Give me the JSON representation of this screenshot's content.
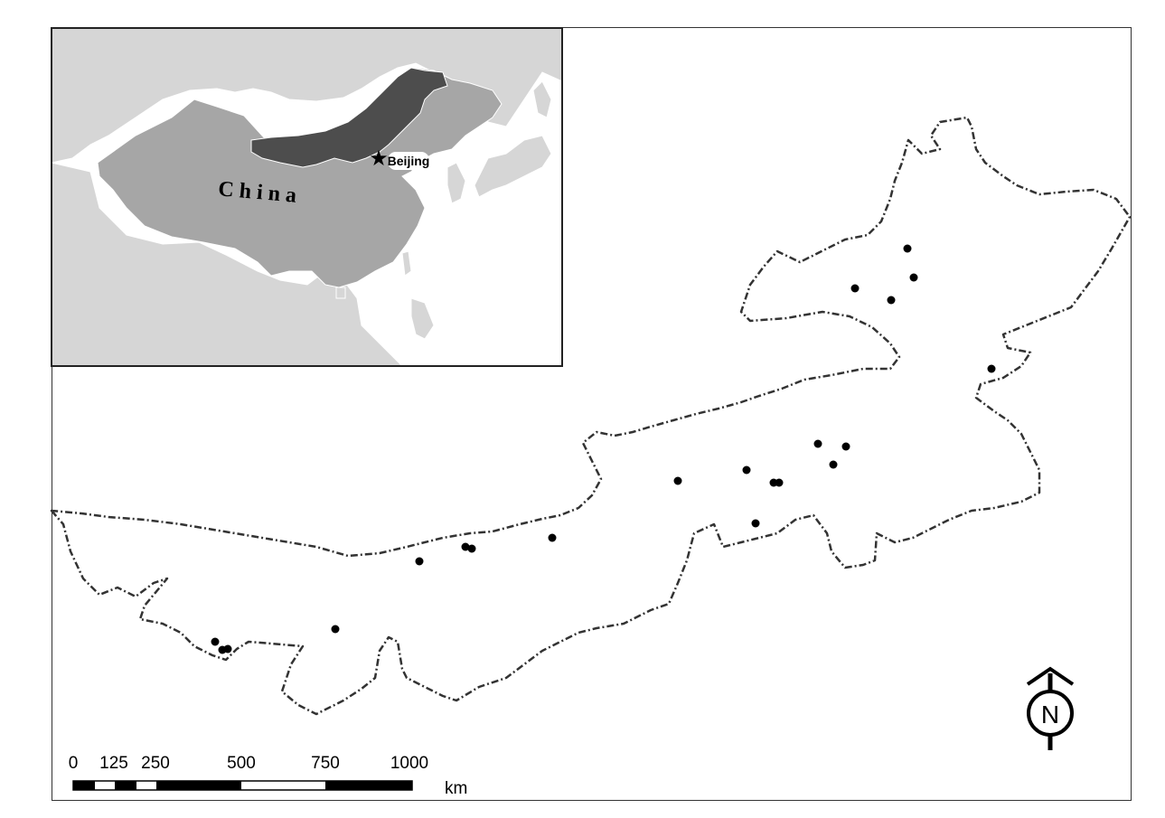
{
  "inset": {
    "country_label": "C h i n a",
    "capital_label": "Beijing",
    "capital_symbol": "★"
  },
  "north_arrow": {
    "label": "N"
  },
  "scale_bar": {
    "ticks": [
      "0",
      "125",
      "250",
      "500",
      "750",
      "1000"
    ],
    "unit": "km"
  },
  "colors": {
    "region_border": "#333333",
    "sample_point": "#000000",
    "china_fill": "#a6a6a6",
    "study_region_fill": "#4d4d4d",
    "neighbors_fill": "#d6d6d6",
    "ocean_fill": "#ffffff"
  }
}
